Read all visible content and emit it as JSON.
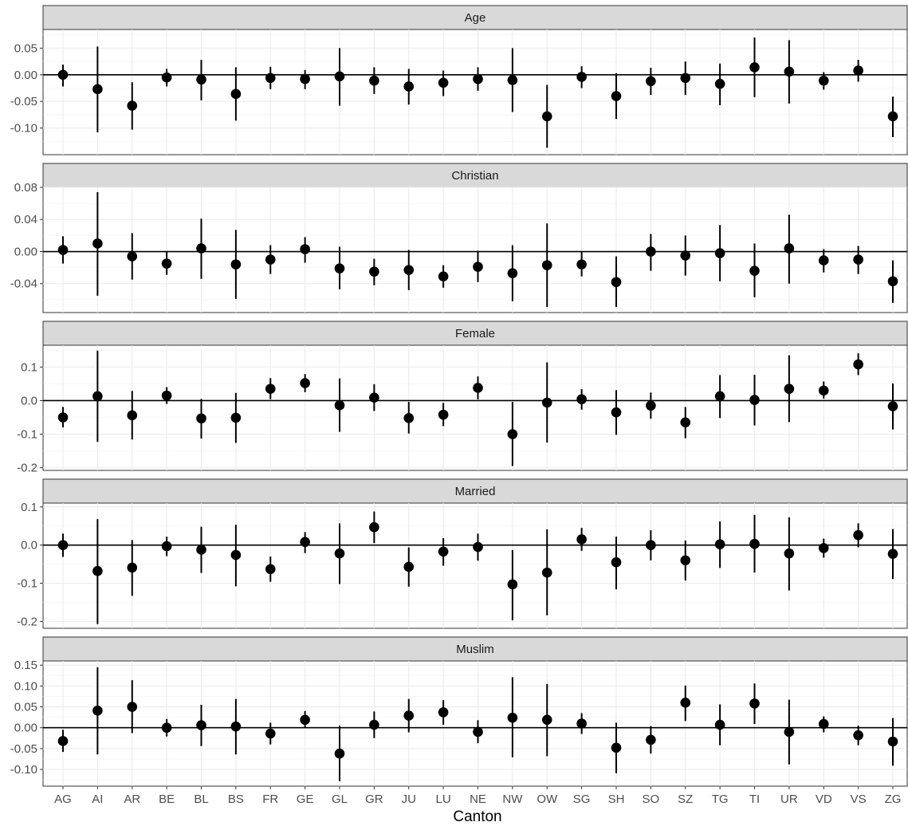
{
  "chart_data": {
    "type": "scatter",
    "subtype": "point-range (estimate with interval) faceted by variable",
    "xlabel": "Canton",
    "categories": [
      "AG",
      "AI",
      "AR",
      "BE",
      "BL",
      "BS",
      "FR",
      "GE",
      "GL",
      "GR",
      "JU",
      "LU",
      "NE",
      "NW",
      "OW",
      "SG",
      "SH",
      "SO",
      "SZ",
      "TG",
      "TI",
      "UR",
      "VD",
      "VS",
      "ZG"
    ],
    "grid": true,
    "reference_line_y": 0,
    "panels": [
      {
        "name": "Age",
        "ylim": [
          -0.15,
          0.085
        ],
        "yticks": [
          -0.1,
          -0.05,
          0.0,
          0.05
        ],
        "ytick_labels": [
          "-0.10",
          "-0.05",
          "0.00",
          "0.05"
        ],
        "estimates": [
          0.0,
          -0.027,
          -0.058,
          -0.005,
          -0.009,
          -0.036,
          -0.006,
          -0.008,
          -0.003,
          -0.011,
          -0.022,
          -0.015,
          -0.008,
          -0.01,
          -0.078,
          -0.004,
          -0.04,
          -0.012,
          -0.006,
          -0.017,
          0.014,
          0.006,
          -0.011,
          0.008,
          -0.078
        ],
        "lower": [
          -0.022,
          -0.108,
          -0.103,
          -0.022,
          -0.048,
          -0.086,
          -0.027,
          -0.027,
          -0.058,
          -0.036,
          -0.056,
          -0.04,
          -0.03,
          -0.07,
          -0.137,
          -0.025,
          -0.083,
          -0.038,
          -0.038,
          -0.057,
          -0.042,
          -0.054,
          -0.028,
          -0.013,
          -0.117
        ],
        "upper": [
          0.019,
          0.053,
          -0.014,
          0.011,
          0.028,
          0.014,
          0.015,
          0.009,
          0.05,
          0.014,
          0.011,
          0.008,
          0.014,
          0.05,
          -0.019,
          0.016,
          0.003,
          0.013,
          0.025,
          0.021,
          0.07,
          0.065,
          0.005,
          0.028,
          -0.041
        ]
      },
      {
        "name": "Christian",
        "ylim": [
          -0.076,
          0.08
        ],
        "yticks": [
          -0.04,
          0.0,
          0.04,
          0.08
        ],
        "ytick_labels": [
          "-0.04",
          "0.00",
          "0.04",
          "0.08"
        ],
        "estimates": [
          0.002,
          0.01,
          -0.006,
          -0.015,
          0.004,
          -0.016,
          -0.01,
          0.003,
          -0.021,
          -0.025,
          -0.023,
          -0.031,
          -0.019,
          -0.027,
          -0.017,
          -0.016,
          -0.038,
          0.0,
          -0.005,
          -0.002,
          -0.024,
          0.004,
          -0.011,
          -0.01,
          -0.037
        ],
        "lower": [
          -0.015,
          -0.055,
          -0.035,
          -0.029,
          -0.034,
          -0.059,
          -0.028,
          -0.014,
          -0.047,
          -0.042,
          -0.048,
          -0.045,
          -0.038,
          -0.062,
          -0.069,
          -0.031,
          -0.069,
          -0.024,
          -0.03,
          -0.037,
          -0.057,
          -0.04,
          -0.026,
          -0.028,
          -0.064
        ],
        "upper": [
          0.019,
          0.074,
          0.023,
          0.0,
          0.041,
          0.027,
          0.008,
          0.018,
          0.006,
          -0.009,
          0.002,
          -0.017,
          0.001,
          0.008,
          0.035,
          0.0,
          -0.006,
          0.022,
          0.02,
          0.033,
          0.01,
          0.046,
          0.003,
          0.007,
          -0.011
        ]
      },
      {
        "name": "Female",
        "ylim": [
          -0.208,
          0.165
        ],
        "yticks": [
          -0.2,
          -0.1,
          0.0,
          0.1
        ],
        "ytick_labels": [
          "-0.2",
          "-0.1",
          "0.0",
          "0.1"
        ],
        "estimates": [
          -0.05,
          0.013,
          -0.044,
          0.015,
          -0.053,
          -0.051,
          0.035,
          0.052,
          -0.014,
          0.009,
          -0.052,
          -0.042,
          0.038,
          -0.1,
          -0.006,
          0.004,
          -0.035,
          -0.015,
          -0.065,
          0.013,
          0.002,
          0.035,
          0.03,
          0.108,
          -0.017
        ],
        "lower": [
          -0.08,
          -0.123,
          -0.116,
          -0.01,
          -0.113,
          -0.126,
          0.004,
          0.025,
          -0.093,
          -0.031,
          -0.098,
          -0.076,
          0.004,
          -0.195,
          -0.125,
          -0.027,
          -0.102,
          -0.054,
          -0.112,
          -0.052,
          -0.074,
          -0.064,
          0.006,
          0.076,
          -0.086
        ],
        "upper": [
          -0.019,
          0.149,
          0.029,
          0.04,
          0.005,
          0.023,
          0.067,
          0.079,
          0.066,
          0.049,
          -0.004,
          -0.007,
          0.072,
          -0.004,
          0.114,
          0.034,
          0.031,
          0.024,
          -0.019,
          0.076,
          0.077,
          0.135,
          0.057,
          0.141,
          0.051
        ]
      },
      {
        "name": "Married",
        "ylim": [
          -0.218,
          0.11
        ],
        "yticks": [
          -0.2,
          -0.1,
          0.0,
          0.1
        ],
        "ytick_labels": [
          "-0.2",
          "-0.1",
          "0.0",
          "0.1"
        ],
        "estimates": [
          0.0,
          -0.068,
          -0.059,
          -0.003,
          -0.012,
          -0.026,
          -0.063,
          0.008,
          -0.022,
          0.047,
          -0.057,
          -0.017,
          -0.005,
          -0.103,
          -0.072,
          0.015,
          -0.045,
          0.0,
          -0.04,
          0.002,
          0.003,
          -0.022,
          -0.008,
          0.026,
          -0.023
        ],
        "lower": [
          -0.031,
          -0.207,
          -0.133,
          -0.029,
          -0.073,
          -0.108,
          -0.096,
          -0.021,
          -0.102,
          0.005,
          -0.109,
          -0.054,
          -0.041,
          -0.197,
          -0.184,
          -0.015,
          -0.116,
          -0.04,
          -0.093,
          -0.06,
          -0.072,
          -0.119,
          -0.033,
          -0.006,
          -0.089
        ],
        "upper": [
          0.03,
          0.068,
          0.013,
          0.022,
          0.048,
          0.053,
          -0.03,
          0.034,
          0.057,
          0.088,
          -0.006,
          0.018,
          0.03,
          -0.013,
          0.041,
          0.045,
          0.022,
          0.039,
          0.012,
          0.062,
          0.079,
          0.073,
          0.017,
          0.057,
          0.042
        ]
      },
      {
        "name": "Muslim",
        "ylim": [
          -0.14,
          0.16
        ],
        "yticks": [
          -0.1,
          -0.05,
          0.0,
          0.05,
          0.1,
          0.15
        ],
        "ytick_labels": [
          "-0.10",
          "-0.05",
          "0.00",
          "0.05",
          "0.10",
          "0.15"
        ],
        "estimates": [
          -0.032,
          0.041,
          0.05,
          0.0,
          0.006,
          0.003,
          -0.014,
          0.019,
          -0.062,
          0.007,
          0.029,
          0.037,
          -0.01,
          0.024,
          0.019,
          0.01,
          -0.048,
          -0.029,
          0.06,
          0.007,
          0.058,
          -0.01,
          0.009,
          -0.018,
          -0.033
        ],
        "lower": [
          -0.058,
          -0.064,
          -0.013,
          -0.021,
          -0.044,
          -0.064,
          -0.04,
          0.0,
          -0.128,
          -0.025,
          -0.011,
          0.007,
          -0.037,
          -0.071,
          -0.068,
          -0.015,
          -0.109,
          -0.062,
          0.016,
          -0.042,
          0.009,
          -0.088,
          -0.011,
          -0.042,
          -0.091
        ],
        "upper": [
          -0.005,
          0.145,
          0.114,
          0.021,
          0.055,
          0.069,
          0.012,
          0.04,
          0.005,
          0.039,
          0.069,
          0.066,
          0.018,
          0.121,
          0.105,
          0.035,
          0.012,
          0.004,
          0.101,
          0.056,
          0.106,
          0.067,
          0.027,
          0.005,
          0.023
        ]
      }
    ]
  }
}
